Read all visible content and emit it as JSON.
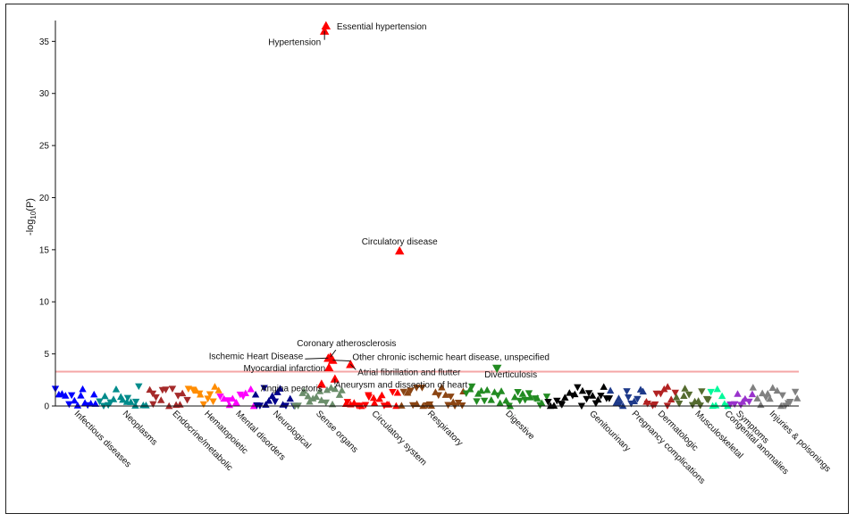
{
  "chart_data": {
    "type": "scatter",
    "title": "",
    "xlabel": "",
    "ylabel_prefix": "-log",
    "ylabel_sub": "10",
    "ylabel_suffix": "(P)",
    "ylim": [
      0,
      37
    ],
    "yticks": [
      0,
      5,
      10,
      15,
      20,
      25,
      30,
      35
    ],
    "threshold": 3.3,
    "threshold_color": "#f4a6a6",
    "categories": [
      {
        "name": "Infectious diseases",
        "color": "#0000ff",
        "label_pos": 0.025
      },
      {
        "name": "Neoplasms",
        "color": "#008b8b",
        "label_pos": 0.09
      },
      {
        "name": "Endocrine/metabolic",
        "color": "#a52a2a",
        "label_pos": 0.157
      },
      {
        "name": "Hematopoietic",
        "color": "#ff8c00",
        "label_pos": 0.2
      },
      {
        "name": "Mental disorders",
        "color": "#ff00ff",
        "label_pos": 0.242
      },
      {
        "name": "Neurological",
        "color": "#00008b",
        "label_pos": 0.292
      },
      {
        "name": "Sense organs",
        "color": "#6b8e6b",
        "label_pos": 0.35
      },
      {
        "name": "Circulatory system",
        "color": "#ff0000",
        "label_pos": 0.425
      },
      {
        "name": "Respiratory",
        "color": "#8b4513",
        "label_pos": 0.5
      },
      {
        "name": "Digestive",
        "color": "#228b22",
        "label_pos": 0.605
      },
      {
        "name": "Genitourinary",
        "color": "#000000",
        "label_pos": 0.718
      },
      {
        "name": "Pregnancy complications",
        "color": "#1e3a8a",
        "label_pos": 0.775
      },
      {
        "name": "Dermatologic",
        "color": "#b22222",
        "label_pos": 0.81
      },
      {
        "name": "Musculoskeletal",
        "color": "#556b2f",
        "label_pos": 0.86
      },
      {
        "name": "Congenital anomalies",
        "color": "#00fa9a",
        "label_pos": 0.9
      },
      {
        "name": "Symptoms",
        "color": "#9932cc",
        "label_pos": 0.915
      },
      {
        "name": "Injuries & poisonings",
        "color": "#808080",
        "label_pos": 0.96
      }
    ],
    "labeled_points": [
      {
        "label": "Essential hypertension",
        "category": "Circulatory system",
        "x": 0.364,
        "y": 36.5,
        "direction": "up"
      },
      {
        "label": "Hypertension",
        "category": "Circulatory system",
        "x": 0.362,
        "y": 36.0,
        "direction": "up"
      },
      {
        "label": "Circulatory disease",
        "category": "Circulatory system",
        "x": 0.463,
        "y": 14.9,
        "direction": "up"
      },
      {
        "label": "Coronary atherosclerosis",
        "category": "Circulatory system",
        "x": 0.37,
        "y": 4.7,
        "direction": "up"
      },
      {
        "label": "Ischemic Heart Disease",
        "category": "Circulatory system",
        "x": 0.367,
        "y": 4.6,
        "direction": "up"
      },
      {
        "label": "Other chronic ischemic heart disease, unspecified",
        "category": "Circulatory system",
        "x": 0.373,
        "y": 4.4,
        "direction": "up"
      },
      {
        "label": "Myocardial infarction",
        "category": "Circulatory system",
        "x": 0.368,
        "y": 3.7,
        "direction": "up"
      },
      {
        "label": "Atrial fibrillation and flutter",
        "category": "Circulatory system",
        "x": 0.397,
        "y": 4.0,
        "direction": "up"
      },
      {
        "label": "Angina pectoris",
        "category": "Circulatory system",
        "x": 0.358,
        "y": 2.1,
        "direction": "up"
      },
      {
        "label": "Aneurysm and dissection of heart",
        "category": "Circulatory system",
        "x": 0.376,
        "y": 2.6,
        "direction": "up"
      },
      {
        "label": "Diverticulosis",
        "category": "Digestive",
        "x": 0.594,
        "y": 3.6,
        "direction": "down"
      }
    ]
  }
}
